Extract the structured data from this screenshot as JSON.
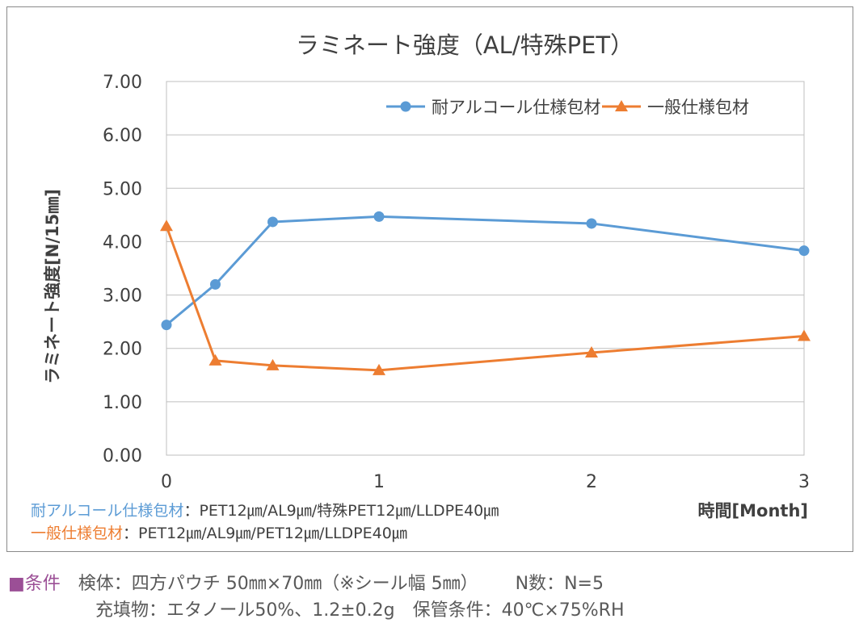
{
  "chart_data": {
    "type": "line",
    "title": "ラミネート強度（AL/特殊PET）",
    "xlabel": "時間[Month]",
    "ylabel": "ラミネート強度[N/15㎜]",
    "ylim": [
      0,
      7
    ],
    "xlim": [
      0,
      3
    ],
    "yticks": [
      "0.00",
      "1.00",
      "2.00",
      "3.00",
      "4.00",
      "5.00",
      "6.00",
      "7.00"
    ],
    "xticks": [
      "0",
      "1",
      "2",
      "3"
    ],
    "grid": true,
    "legend_position": "top-right",
    "series": [
      {
        "name": "耐アルコール仕様包材",
        "color": "#5b9bd5",
        "marker": "circle",
        "x": [
          0,
          0.23,
          0.5,
          1,
          2,
          3
        ],
        "y": [
          2.44,
          3.2,
          4.37,
          4.47,
          4.34,
          3.83
        ]
      },
      {
        "name": "一般仕様包材",
        "color": "#ed7d31",
        "marker": "triangle",
        "x": [
          0,
          0.23,
          0.5,
          1,
          2,
          3
        ],
        "y": [
          4.29,
          1.77,
          1.68,
          1.59,
          1.92,
          2.23
        ]
      }
    ]
  },
  "notes": [
    {
      "name": "耐アルコール仕様包材",
      "spec": "：PET12㎛/AL9㎛/特殊PET12㎛/LLDPE40㎛"
    },
    {
      "name": "一般仕様包材",
      "spec": "：PET12㎛/AL9㎛/PET12㎛/LLDPE40㎛"
    }
  ],
  "conditions": {
    "label": "■条件",
    "specimen": "検体：四方パウチ 50㎜×70㎜（※シール幅 5㎜）",
    "n": "N数：N=5",
    "filling": "充填物：エタノール50%、1.2±0.2g",
    "storage": "保管条件：40℃×75%RH"
  }
}
